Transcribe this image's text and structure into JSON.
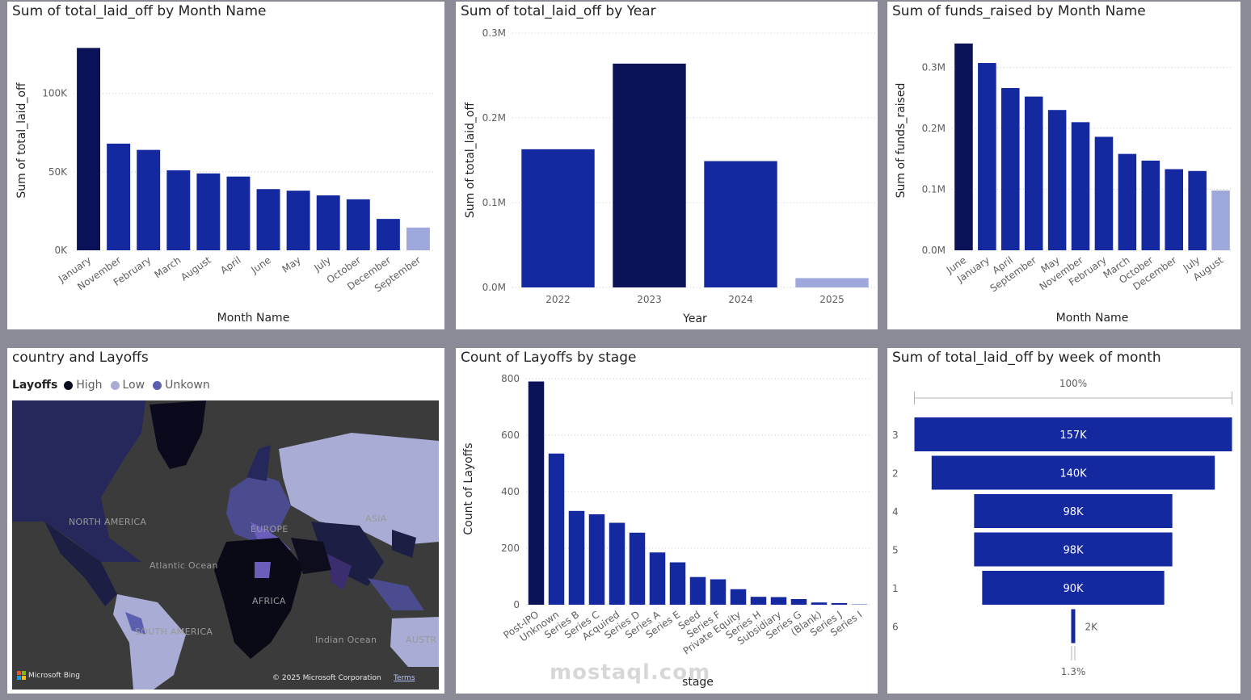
{
  "colors": {
    "bar_main": "#1428a0",
    "bar_high": "#0b1257",
    "bar_low": "#9fa8dc",
    "map_high": "#0a0a20",
    "map_low": "#a9acd4",
    "map_unknown": "#5b5fb0"
  },
  "panel_month_layoffs": {
    "title": "Sum of total_laid_off by Month Name",
    "chart_data": {
      "type": "bar",
      "title": "Sum of total_laid_off by Month Name",
      "xlabel": "Month Name",
      "ylabel": "Sum of total_laid_off",
      "categories": [
        "January",
        "November",
        "February",
        "March",
        "August",
        "April",
        "June",
        "May",
        "July",
        "October",
        "December",
        "September"
      ],
      "values": [
        129000,
        68000,
        64000,
        51000,
        49000,
        47000,
        39000,
        38000,
        35000,
        32500,
        20000,
        14500
      ],
      "highlight": {
        "max_index": 0,
        "min_index": 11
      },
      "ylim": [
        0,
        140000
      ],
      "yticks": [
        {
          "v": 0,
          "label": "0K"
        },
        {
          "v": 50000,
          "label": "50K"
        },
        {
          "v": 100000,
          "label": "100K"
        }
      ],
      "grid": true
    }
  },
  "panel_year_layoffs": {
    "title": "Sum of total_laid_off by Year",
    "chart_data": {
      "type": "bar",
      "title": "Sum of total_laid_off by Year",
      "xlabel": "Year",
      "ylabel": "Sum of total_laid_off",
      "categories": [
        "2022",
        "2023",
        "2024",
        "2025"
      ],
      "values": [
        163000,
        264000,
        149000,
        11000
      ],
      "highlight": {
        "max_index": 1,
        "min_index": 3
      },
      "ylim": [
        0,
        300000
      ],
      "yticks": [
        {
          "v": 0,
          "label": "0.0M"
        },
        {
          "v": 100000,
          "label": "0.1M"
        },
        {
          "v": 200000,
          "label": "0.2M"
        },
        {
          "v": 300000,
          "label": "0.3M"
        }
      ],
      "grid": true
    }
  },
  "panel_month_funds": {
    "title": "Sum of funds_raised by Month Name",
    "chart_data": {
      "type": "bar",
      "title": "Sum of funds_raised by Month Name",
      "xlabel": "Month Name",
      "ylabel": "Sum of funds_raised",
      "categories": [
        "June",
        "January",
        "April",
        "September",
        "May",
        "November",
        "February",
        "March",
        "October",
        "December",
        "July",
        "August"
      ],
      "values": [
        339000,
        307000,
        266000,
        252000,
        230000,
        210000,
        186000,
        158000,
        147000,
        133000,
        130000,
        98000
      ],
      "highlight": {
        "max_index": 0,
        "min_index": 11
      },
      "ylim": [
        0,
        360000
      ],
      "yticks": [
        {
          "v": 0,
          "label": "0.0M"
        },
        {
          "v": 100000,
          "label": "0.1M"
        },
        {
          "v": 200000,
          "label": "0.2M"
        },
        {
          "v": 300000,
          "label": "0.3M"
        }
      ],
      "grid": true
    }
  },
  "panel_map": {
    "title": "country and Layoffs",
    "legend_title": "Layoffs",
    "legend_items": [
      {
        "label": "High",
        "color": "#0a0a20"
      },
      {
        "label": "Low",
        "color": "#a9acd4"
      },
      {
        "label": "Unkown",
        "color": "#5b5fb0"
      }
    ],
    "labels": {
      "north_america": "NORTH AMERICA",
      "europe": "EUROPE",
      "asia": "ASIA",
      "atlantic": "Atlantic Ocean",
      "africa": "AFRICA",
      "south_america": "SOUTH AMERICA",
      "indian": "Indian Ocean",
      "australia": "AUSTR"
    },
    "bing": "Microsoft Bing",
    "copyright": "© 2025 Microsoft Corporation",
    "terms": "Terms"
  },
  "panel_stage": {
    "title": "Count of Layoffs by stage",
    "chart_data": {
      "type": "bar",
      "title": "Count of Layoffs by stage",
      "xlabel": "stage",
      "ylabel": "Count of Layoffs",
      "categories": [
        "Post-IPO",
        "Unknown",
        "Series B",
        "Series C",
        "Acquired",
        "Series D",
        "Series A",
        "Series E",
        "Seed",
        "Series F",
        "Private Equity",
        "Series H",
        "Subsidiary",
        "Series G",
        "(Blank)",
        "Series J",
        "Series I"
      ],
      "values": [
        790,
        535,
        332,
        320,
        290,
        255,
        185,
        150,
        98,
        90,
        55,
        28,
        27,
        20,
        8,
        6,
        3
      ],
      "highlight": {
        "max_index": 0,
        "min_index": 16
      },
      "ylim": [
        0,
        820
      ],
      "yticks": [
        {
          "v": 0,
          "label": "0"
        },
        {
          "v": 200,
          "label": "200"
        },
        {
          "v": 400,
          "label": "400"
        },
        {
          "v": 600,
          "label": "600"
        },
        {
          "v": 800,
          "label": "800"
        }
      ],
      "grid": true
    }
  },
  "panel_funnel": {
    "title": "Sum of total_laid_off by week of month",
    "top_percent": "100%",
    "bottom_percent": "1.3%",
    "chart_data": {
      "type": "bar",
      "subtype": "funnel",
      "title": "Sum of total_laid_off by week of month",
      "categories": [
        "3",
        "2",
        "4",
        "5",
        "1",
        "6"
      ],
      "values": [
        157000,
        140000,
        98000,
        98000,
        90000,
        2000
      ],
      "labels": [
        "157K",
        "140K",
        "98K",
        "98K",
        "90K",
        "2K"
      ]
    }
  },
  "watermark": "mostaql.com"
}
